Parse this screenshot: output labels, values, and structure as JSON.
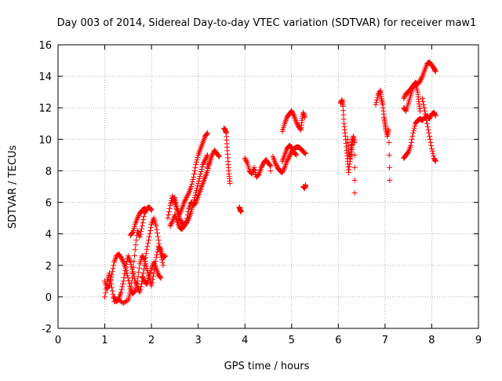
{
  "chart_data": {
    "type": "scatter",
    "title": "Day 003 of 2014, Sidereal Day-to-day VTEC variation (SDTVAR) for receiver maw1",
    "xlabel": "GPS time / hours",
    "ylabel": "SDTVAR / TECUs",
    "xlim": [
      0,
      9
    ],
    "ylim": [
      -2,
      16
    ],
    "xticks": [
      0,
      1,
      2,
      3,
      4,
      5,
      6,
      7,
      8,
      9
    ],
    "yticks": [
      -2,
      0,
      2,
      4,
      6,
      8,
      10,
      12,
      14,
      16
    ],
    "grid": true,
    "marker": "+",
    "color": "#ff0000",
    "series": [
      {
        "name": "SDTVAR",
        "segments": [
          [
            [
              1.0,
              0.0
            ],
            [
              1.05,
              1.0
            ],
            [
              1.1,
              1.5
            ],
            [
              1.15,
              0.6
            ],
            [
              1.2,
              -0.3
            ],
            [
              1.3,
              -0.2
            ],
            [
              1.4,
              -0.4
            ],
            [
              1.5,
              -0.2
            ],
            [
              1.55,
              0.3
            ],
            [
              1.6,
              1.5
            ],
            [
              1.65,
              3.0
            ],
            [
              1.7,
              4.2
            ],
            [
              1.75,
              3.8
            ],
            [
              1.8,
              4.5
            ],
            [
              1.85,
              5.3
            ],
            [
              1.9,
              5.6
            ],
            [
              1.95,
              5.7
            ],
            [
              2.0,
              5.5
            ]
          ],
          [
            [
              1.0,
              1.0
            ],
            [
              1.05,
              0.5
            ],
            [
              1.1,
              0.8
            ],
            [
              1.15,
              1.4
            ],
            [
              1.2,
              2.2
            ],
            [
              1.25,
              2.6
            ],
            [
              1.3,
              2.7
            ],
            [
              1.35,
              2.5
            ],
            [
              1.4,
              2.2
            ],
            [
              1.45,
              1.8
            ],
            [
              1.5,
              1.2
            ],
            [
              1.55,
              0.5
            ],
            [
              1.6,
              0.2
            ],
            [
              1.65,
              0.4
            ],
            [
              1.7,
              1.0
            ],
            [
              1.75,
              2.1
            ],
            [
              1.8,
              2.6
            ],
            [
              1.85,
              2.4
            ],
            [
              1.9,
              1.8
            ],
            [
              1.95,
              1.2
            ],
            [
              2.0,
              0.7
            ],
            [
              2.05,
              1.5
            ],
            [
              2.1,
              2.5
            ],
            [
              2.15,
              3.2
            ],
            [
              2.2,
              3.0
            ],
            [
              2.25,
              2.5
            ],
            [
              2.3,
              2.6
            ]
          ],
          [
            [
              1.2,
              0.0
            ],
            [
              1.25,
              -0.3
            ],
            [
              1.3,
              -0.1
            ],
            [
              1.35,
              0.3
            ],
            [
              1.4,
              1.0
            ],
            [
              1.45,
              1.9
            ],
            [
              1.5,
              2.6
            ],
            [
              1.55,
              2.2
            ],
            [
              1.6,
              1.6
            ],
            [
              1.65,
              1.0
            ],
            [
              1.7,
              0.6
            ],
            [
              1.75,
              0.3
            ],
            [
              1.8,
              1.0
            ],
            [
              1.85,
              2.0
            ],
            [
              1.9,
              3.0
            ],
            [
              1.95,
              3.8
            ],
            [
              2.0,
              4.6
            ],
            [
              2.05,
              5.0
            ],
            [
              2.1,
              4.5
            ],
            [
              2.15,
              3.6
            ],
            [
              2.2,
              2.7
            ],
            [
              2.25,
              2.0
            ]
          ],
          [
            [
              1.55,
              3.9
            ],
            [
              1.6,
              4.1
            ],
            [
              1.65,
              4.6
            ],
            [
              1.7,
              5.0
            ],
            [
              1.75,
              5.3
            ],
            [
              1.8,
              5.5
            ],
            [
              1.85,
              5.6
            ],
            [
              1.9,
              5.5
            ]
          ],
          [
            [
              1.8,
              1.3
            ],
            [
              1.85,
              1.0
            ],
            [
              1.9,
              0.8
            ],
            [
              1.95,
              1.3
            ],
            [
              2.0,
              1.8
            ],
            [
              2.05,
              2.2
            ],
            [
              2.1,
              1.8
            ],
            [
              2.15,
              1.4
            ],
            [
              2.2,
              1.2
            ]
          ],
          [
            [
              2.35,
              5.0
            ],
            [
              2.4,
              5.8
            ],
            [
              2.45,
              6.4
            ],
            [
              2.5,
              6.0
            ],
            [
              2.55,
              5.4
            ],
            [
              2.6,
              5.0
            ],
            [
              2.65,
              4.7
            ],
            [
              2.7,
              4.5
            ],
            [
              2.75,
              4.7
            ],
            [
              2.8,
              5.0
            ],
            [
              2.85,
              5.4
            ],
            [
              2.9,
              6.0
            ],
            [
              2.95,
              6.6
            ],
            [
              3.0,
              7.2
            ],
            [
              3.05,
              7.8
            ],
            [
              3.1,
              8.4
            ],
            [
              3.15,
              8.7
            ],
            [
              3.2,
              9.0
            ]
          ],
          [
            [
              2.4,
              4.5
            ],
            [
              2.45,
              4.8
            ],
            [
              2.5,
              5.2
            ],
            [
              2.55,
              4.8
            ],
            [
              2.6,
              4.4
            ],
            [
              2.65,
              4.3
            ],
            [
              2.7,
              4.5
            ],
            [
              2.75,
              4.8
            ],
            [
              2.8,
              5.6
            ],
            [
              2.85,
              6.0
            ],
            [
              2.9,
              5.8
            ],
            [
              2.95,
              6.0
            ],
            [
              3.0,
              6.4
            ],
            [
              3.05,
              6.8
            ],
            [
              3.1,
              7.2
            ],
            [
              3.15,
              7.6
            ],
            [
              3.2,
              8.0
            ],
            [
              3.25,
              8.6
            ]
          ],
          [
            [
              2.45,
              6.0
            ],
            [
              2.5,
              6.3
            ],
            [
              2.55,
              5.6
            ],
            [
              2.6,
              5.2
            ],
            [
              2.65,
              5.6
            ],
            [
              2.7,
              6.0
            ],
            [
              2.75,
              6.3
            ],
            [
              2.8,
              6.6
            ],
            [
              2.85,
              7.0
            ],
            [
              2.9,
              7.6
            ],
            [
              2.95,
              8.4
            ],
            [
              3.0,
              9.0
            ],
            [
              3.05,
              9.4
            ],
            [
              3.1,
              9.8
            ],
            [
              3.15,
              10.2
            ],
            [
              3.2,
              10.4
            ]
          ],
          [
            [
              3.2,
              8.2
            ],
            [
              3.25,
              8.6
            ],
            [
              3.3,
              9.0
            ],
            [
              3.35,
              9.3
            ],
            [
              3.4,
              9.1
            ],
            [
              3.45,
              8.9
            ]
          ],
          [
            [
              3.55,
              10.7
            ],
            [
              3.58,
              10.6
            ],
            [
              3.6,
              10.4
            ],
            [
              3.62,
              9.5
            ],
            [
              3.64,
              8.6
            ],
            [
              3.66,
              7.8
            ],
            [
              3.68,
              7.2
            ]
          ],
          [
            [
              3.88,
              5.7
            ],
            [
              3.9,
              5.5
            ],
            [
              3.92,
              5.4
            ]
          ],
          [
            [
              4.0,
              8.8
            ],
            [
              4.05,
              8.5
            ],
            [
              4.1,
              8.0
            ],
            [
              4.15,
              7.8
            ],
            [
              4.2,
              8.2
            ],
            [
              4.25,
              7.6
            ],
            [
              4.3,
              7.8
            ],
            [
              4.35,
              8.2
            ],
            [
              4.4,
              8.5
            ],
            [
              4.45,
              8.7
            ],
            [
              4.5,
              8.5
            ],
            [
              4.55,
              8.3
            ]
          ],
          [
            [
              4.55,
              8.0
            ]
          ],
          [
            [
              4.6,
              8.9
            ],
            [
              4.65,
              8.5
            ],
            [
              4.7,
              8.2
            ],
            [
              4.75,
              8.0
            ],
            [
              4.8,
              7.9
            ],
            [
              4.85,
              8.2
            ],
            [
              4.9,
              8.6
            ],
            [
              4.95,
              8.9
            ],
            [
              5.0,
              9.2
            ],
            [
              5.05,
              9.4
            ],
            [
              5.1,
              9.5
            ],
            [
              5.15,
              9.5
            ],
            [
              5.2,
              9.4
            ],
            [
              5.25,
              9.2
            ],
            [
              5.3,
              9.1
            ]
          ],
          [
            [
              4.8,
              8.6
            ],
            [
              4.85,
              9.0
            ],
            [
              4.9,
              9.4
            ],
            [
              4.95,
              9.6
            ],
            [
              5.0,
              9.5
            ],
            [
              5.05,
              9.2
            ],
            [
              5.1,
              9.0
            ]
          ],
          [
            [
              4.8,
              10.5
            ],
            [
              4.85,
              11.0
            ],
            [
              4.9,
              11.4
            ],
            [
              4.95,
              11.6
            ],
            [
              5.0,
              11.8
            ],
            [
              5.05,
              11.5
            ],
            [
              5.1,
              11.1
            ],
            [
              5.15,
              10.8
            ],
            [
              5.2,
              10.6
            ],
            [
              5.22,
              11.2
            ],
            [
              5.25,
              11.7
            ],
            [
              5.28,
              11.4
            ]
          ],
          [
            [
              5.25,
              7.0
            ],
            [
              5.28,
              6.9
            ],
            [
              5.3,
              7.1
            ]
          ],
          [
            [
              6.05,
              12.3
            ],
            [
              6.08,
              12.5
            ],
            [
              6.1,
              12.1
            ],
            [
              6.12,
              11.0
            ],
            [
              6.15,
              10.2
            ],
            [
              6.18,
              9.3
            ],
            [
              6.2,
              8.6
            ],
            [
              6.22,
              7.9
            ],
            [
              6.25,
              8.6
            ],
            [
              6.28,
              9.2
            ],
            [
              6.3,
              9.8
            ],
            [
              6.32,
              10.2
            ],
            [
              6.35,
              9.8
            ],
            [
              6.35,
              6.6
            ]
          ],
          [
            [
              6.2,
              10.0
            ],
            [
              6.22,
              9.2
            ],
            [
              6.25,
              8.8
            ],
            [
              6.28,
              9.6
            ],
            [
              6.3,
              10.0
            ]
          ],
          [
            [
              6.8,
              12.2
            ],
            [
              6.85,
              12.8
            ],
            [
              6.9,
              13.1
            ],
            [
              6.92,
              12.6
            ],
            [
              6.95,
              12.2
            ],
            [
              6.98,
              11.4
            ],
            [
              7.0,
              11.0
            ],
            [
              7.02,
              10.6
            ],
            [
              7.05,
              10.2
            ],
            [
              7.08,
              10.6
            ],
            [
              7.1,
              7.4
            ]
          ],
          [
            [
              7.4,
              12.6
            ],
            [
              7.45,
              12.9
            ],
            [
              7.5,
              13.0
            ],
            [
              7.55,
              13.2
            ],
            [
              7.6,
              13.4
            ],
            [
              7.65,
              13.6
            ],
            [
              7.7,
              13.5
            ],
            [
              7.75,
              13.7
            ],
            [
              7.8,
              14.0
            ],
            [
              7.85,
              14.4
            ],
            [
              7.9,
              14.8
            ],
            [
              7.95,
              14.9
            ],
            [
              8.0,
              14.7
            ],
            [
              8.05,
              14.5
            ],
            [
              8.08,
              14.3
            ]
          ],
          [
            [
              7.4,
              12.0
            ],
            [
              7.45,
              11.8
            ],
            [
              7.5,
              12.3
            ],
            [
              7.55,
              12.8
            ],
            [
              7.6,
              13.3
            ],
            [
              7.65,
              13.5
            ],
            [
              7.7,
              13.0
            ],
            [
              7.72,
              12.4
            ],
            [
              7.75,
              11.8
            ]
          ],
          [
            [
              7.4,
              8.8
            ],
            [
              7.45,
              9.0
            ],
            [
              7.5,
              9.2
            ],
            [
              7.55,
              9.6
            ],
            [
              7.6,
              10.4
            ],
            [
              7.65,
              11.0
            ],
            [
              7.7,
              11.2
            ],
            [
              7.75,
              11.3
            ],
            [
              7.8,
              11.2
            ],
            [
              7.85,
              11.4
            ],
            [
              7.9,
              11.5
            ],
            [
              7.95,
              11.3
            ],
            [
              8.0,
              11.6
            ],
            [
              8.05,
              11.7
            ],
            [
              8.08,
              11.5
            ]
          ],
          [
            [
              7.8,
              12.6
            ],
            [
              7.85,
              11.8
            ],
            [
              7.9,
              11.0
            ],
            [
              7.95,
              10.2
            ],
            [
              8.0,
              9.4
            ],
            [
              8.05,
              8.8
            ],
            [
              8.08,
              8.6
            ]
          ]
        ]
      }
    ]
  }
}
